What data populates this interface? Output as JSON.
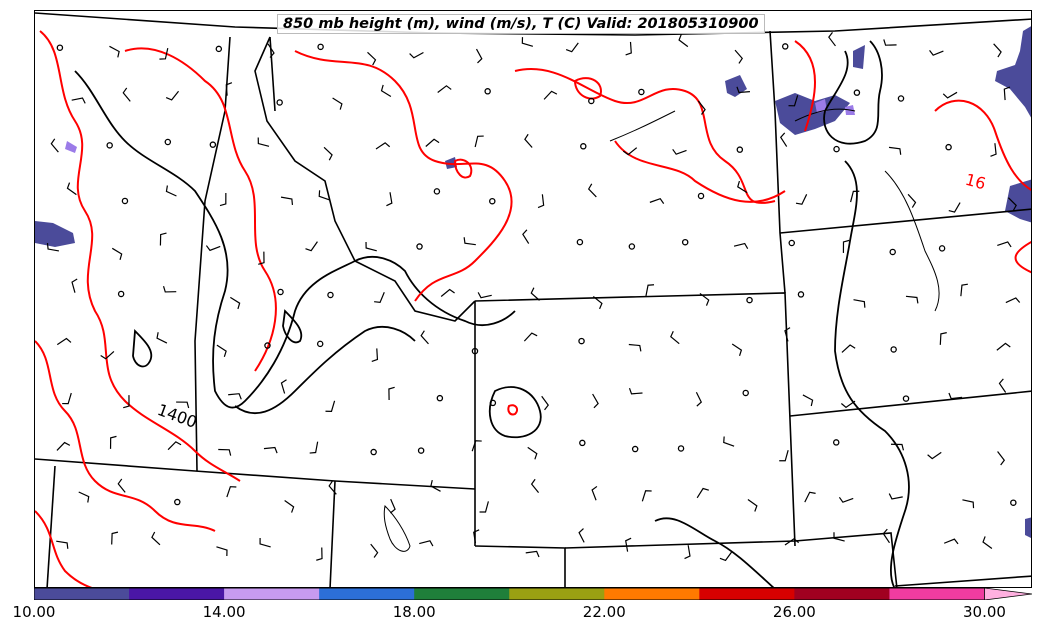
{
  "title": "850 mb height (m), wind (m/s), T (C) Valid: 201805310900",
  "contour_labels": {
    "height": "1400",
    "temperature": "16"
  },
  "colors": {
    "height_contour": "#000000",
    "temperature_contour": "#ff0000",
    "wind_barb": "#000000",
    "borders": "#000000"
  },
  "colorbar": {
    "colors": [
      "#4b4b9a",
      "#4a16a6",
      "#c79bf0",
      "#2c6fd8",
      "#1f7f3a",
      "#9aa012",
      "#ff7a00",
      "#d70000",
      "#a00020",
      "#f03ca0",
      "#ffb0e0"
    ],
    "tick_labels": [
      "10.00",
      "14.00",
      "18.00",
      "22.00",
      "26.00",
      "30.00"
    ],
    "range": [
      10,
      31
    ]
  }
}
